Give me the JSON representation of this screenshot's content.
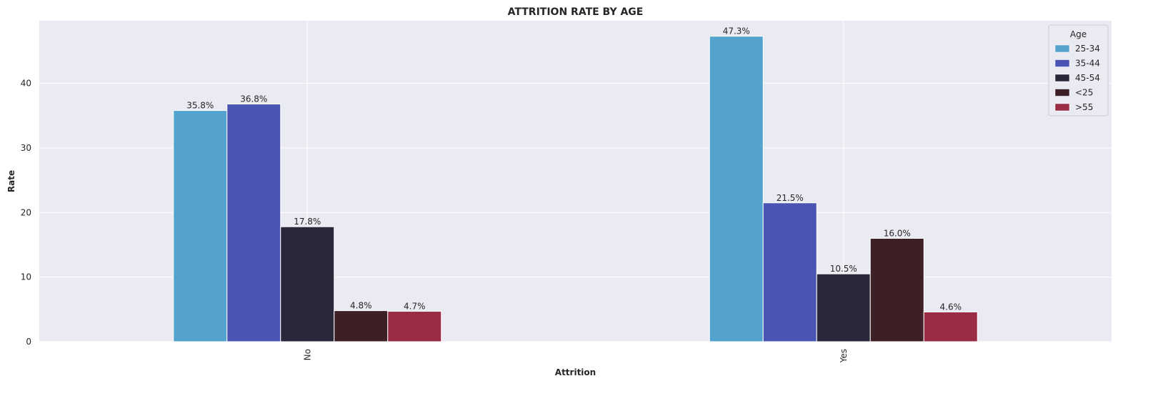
{
  "chart_data": {
    "type": "bar",
    "title": "ATTRITION RATE BY AGE",
    "xlabel": "Attrition",
    "ylabel": "Rate",
    "categories": [
      "No",
      "Yes"
    ],
    "series": [
      {
        "name": "25-34",
        "values": [
          35.8,
          47.3
        ],
        "labels": [
          "35.8%",
          "47.3%"
        ],
        "color": "#54a3cf"
      },
      {
        "name": "35-44",
        "values": [
          36.8,
          21.5
        ],
        "labels": [
          "36.8%",
          "21.5%"
        ],
        "color": "#4a55b3"
      },
      {
        "name": "45-54",
        "values": [
          17.8,
          10.5
        ],
        "labels": [
          "17.8%",
          "10.5%"
        ],
        "color": "#292739"
      },
      {
        "name": "<25",
        "values": [
          4.8,
          16.0
        ],
        "labels": [
          "4.8%",
          "16.0%"
        ],
        "color": "#3d1f26"
      },
      {
        "name": ">55",
        "values": [
          4.7,
          4.6
        ],
        "labels": [
          "4.7%",
          "4.6%"
        ],
        "color": "#9a2c45"
      }
    ],
    "ylim": [
      0,
      49.7
    ],
    "yticks": [
      0,
      10,
      20,
      30,
      40
    ],
    "grid": true,
    "legend": {
      "title": "Age",
      "placement": "top-right"
    },
    "plot_background": "#eaeaf2",
    "grid_color": "#ffffff"
  }
}
